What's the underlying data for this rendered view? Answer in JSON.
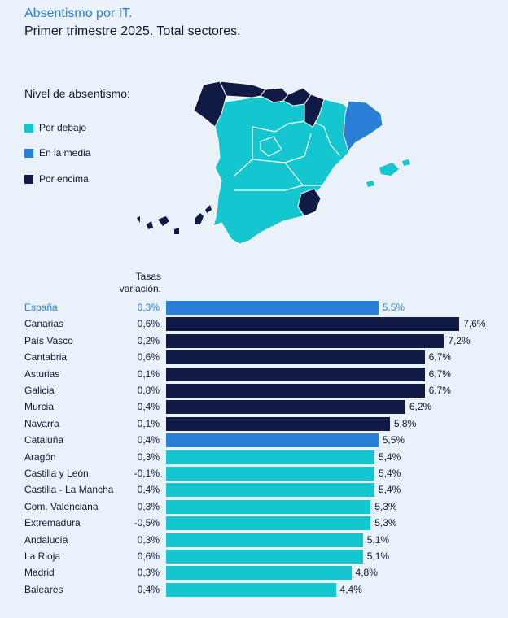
{
  "header": {
    "title": "Absentismo por IT.",
    "subtitle": "Primer trimestre 2025. Total sectores."
  },
  "legend": {
    "title": "Nivel de absentismo:",
    "items": [
      {
        "label": "Por debajo",
        "color": "#14c6d0"
      },
      {
        "label": "En la media",
        "color": "#2a7fd6"
      },
      {
        "label": "Por encima",
        "color": "#111a44"
      }
    ]
  },
  "chart_data": {
    "type": "bar",
    "orientation": "horizontal",
    "column_header": "Tasas variación:",
    "categories": [
      "España",
      "Canarias",
      "País Vasco",
      "Cantabria",
      "Asturias",
      "Galicia",
      "Murcia",
      "Navarra",
      "Cataluña",
      "Aragón",
      "Castilla y León",
      "Castilla - La Mancha",
      "Com. Valenciana",
      "Extremadura",
      "Andalucía",
      "La Rioja",
      "Madrid",
      "Baleares"
    ],
    "values": [
      5.5,
      7.6,
      7.2,
      6.7,
      6.7,
      6.7,
      6.2,
      5.8,
      5.5,
      5.4,
      5.4,
      5.4,
      5.3,
      5.3,
      5.1,
      5.1,
      4.8,
      4.4
    ],
    "value_labels": [
      "5,5%",
      "7,6%",
      "7,2%",
      "6,7%",
      "6,7%",
      "6,7%",
      "6,2%",
      "5,8%",
      "5,5%",
      "5,4%",
      "5,4%",
      "5,4%",
      "5,3%",
      "5,3%",
      "5,1%",
      "5,1%",
      "4,8%",
      "4,4%"
    ],
    "variation_labels": [
      "0,3%",
      "0,6%",
      "0,2%",
      "0,6%",
      "0,1%",
      "0,8%",
      "0,4%",
      "0,1%",
      "0,4%",
      "0,3%",
      "-0,1%",
      "0,4%",
      "0,3%",
      "-0,5%",
      "0,3%",
      "0,6%",
      "0,3%",
      "0,4%"
    ],
    "levels": [
      "media",
      "encima",
      "encima",
      "encima",
      "encima",
      "encima",
      "encima",
      "encima",
      "media",
      "debajo",
      "debajo",
      "debajo",
      "debajo",
      "debajo",
      "debajo",
      "debajo",
      "debajo",
      "debajo"
    ],
    "highlight": "España",
    "colors": {
      "debajo": "#14c6d0",
      "media": "#2a7fd6",
      "encima": "#111a44"
    }
  }
}
